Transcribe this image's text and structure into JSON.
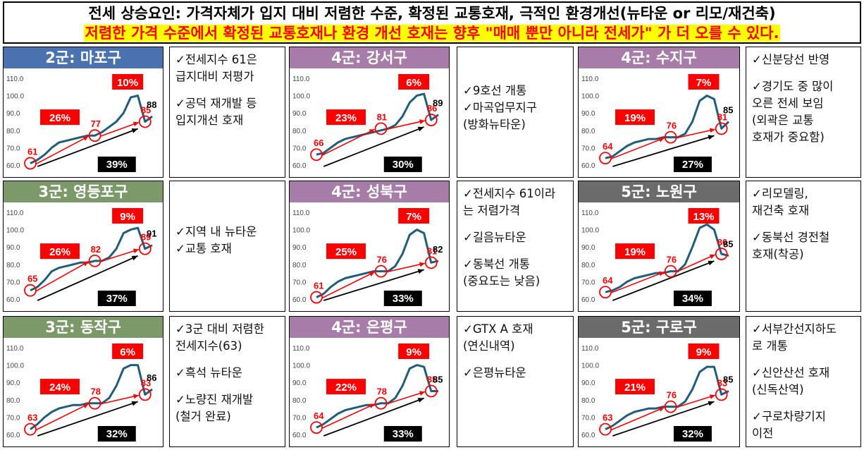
{
  "header": {
    "title": "전세 상승요인: 가격자체가 입지 대비 저렴한 수준, 확정된 교통호재, 극적인 환경개선(뉴타운 or 리모/재건축)",
    "subtitle": "저렴한 가격 수준에서 확정된 교통호재나 환경 개선 호재는 향후 \"매매 뿐만 아니라 전세가\" 가 더 오를 수 있다."
  },
  "colors": {
    "group2": "#4a72b0",
    "group3": "#7c9a69",
    "group4": "#a77ca8",
    "group5": "#6b6b6b",
    "line": "#1f5d7e",
    "red": "#ff0000"
  },
  "chart_data": [
    {
      "type": "line",
      "title": "2군: 마포구",
      "group": "group2",
      "yticks": [
        "110.0",
        "100.0",
        "90.0",
        "80.0",
        "70.0",
        "60.0"
      ],
      "ylim": [
        60,
        110
      ],
      "values": [
        61,
        63,
        66,
        70,
        73,
        74,
        75,
        76,
        77,
        77,
        79,
        82,
        85,
        90,
        99,
        100,
        85,
        88
      ],
      "markers": [
        {
          "label": "61",
          "value": 61
        },
        {
          "label": "77",
          "value": 77
        },
        {
          "label": "85",
          "value": 85
        }
      ],
      "end_label": "88",
      "pct1": "26%",
      "pct2": "10%",
      "total": "39%"
    },
    {
      "type": "line",
      "title": "4군: 강서구",
      "group": "group4",
      "yticks": [
        "110.0",
        "100.0",
        "90.0",
        "80.0",
        "70.0",
        "60.0"
      ],
      "ylim": [
        60,
        110
      ],
      "values": [
        66,
        67,
        70,
        73,
        75,
        76,
        77,
        78,
        79,
        80,
        81,
        83,
        88,
        96,
        100,
        101,
        86,
        89
      ],
      "markers": [
        {
          "label": "66",
          "value": 66
        },
        {
          "label": "81",
          "value": 81
        },
        {
          "label": "86",
          "value": 86
        }
      ],
      "end_label": "89",
      "pct1": "23%",
      "pct2": "6%",
      "total": "30%"
    },
    {
      "type": "line",
      "title": "4군: 수지구",
      "group": "group4",
      "yticks": [
        "110.0",
        "100.0",
        "90.0",
        "80.0",
        "70.0",
        "60.0"
      ],
      "ylim": [
        60,
        110
      ],
      "values": [
        64,
        65,
        68,
        71,
        73,
        74,
        75,
        75,
        76,
        76,
        76,
        78,
        85,
        97,
        100,
        98,
        81,
        85
      ],
      "markers": [
        {
          "label": "64",
          "value": 64
        },
        {
          "label": "76",
          "value": 76
        },
        {
          "label": "81",
          "value": 81
        }
      ],
      "end_label": "85",
      "pct1": "19%",
      "pct2": "7%",
      "total": "27%"
    },
    {
      "type": "line",
      "title": "3군: 영등포구",
      "group": "group3",
      "yticks": [
        "110.0",
        "100.0",
        "90.0",
        "80.0",
        "70.0",
        "60.0"
      ],
      "ylim": [
        60,
        110
      ],
      "values": [
        65,
        67,
        71,
        76,
        78,
        79,
        80,
        81,
        81,
        82,
        82,
        84,
        89,
        98,
        100,
        101,
        89,
        91
      ],
      "markers": [
        {
          "label": "65",
          "value": 65
        },
        {
          "label": "82",
          "value": 82
        },
        {
          "label": "89",
          "value": 89
        }
      ],
      "end_label": "91",
      "pct1": "26%",
      "pct2": "9%",
      "total": "37%"
    },
    {
      "type": "line",
      "title": "4군: 성북구",
      "group": "group4",
      "yticks": [
        "110.0",
        "100.0",
        "90.0",
        "80.0",
        "70.0",
        "60.0"
      ],
      "ylim": [
        60,
        110
      ],
      "values": [
        61,
        63,
        67,
        70,
        72,
        73,
        74,
        75,
        76,
        76,
        76,
        79,
        86,
        97,
        100,
        98,
        81,
        82
      ],
      "markers": [
        {
          "label": "61",
          "value": 61
        },
        {
          "label": "76",
          "value": 76
        },
        {
          "label": "81",
          "value": 81
        }
      ],
      "end_label": "82",
      "pct1": "25%",
      "pct2": "7%",
      "total": "33%"
    },
    {
      "type": "line",
      "title": "5군: 노원구",
      "group": "group5",
      "yticks": [
        "110.0",
        "100.0",
        "90.0",
        "80.0",
        "70.0",
        "60.0"
      ],
      "ylim": [
        60,
        110
      ],
      "values": [
        64,
        65,
        67,
        70,
        72,
        73,
        74,
        75,
        75,
        76,
        76,
        80,
        90,
        101,
        103,
        100,
        86,
        85
      ],
      "markers": [
        {
          "label": "64",
          "value": 64
        },
        {
          "label": "76",
          "value": 76
        },
        {
          "label": "86",
          "value": 86
        }
      ],
      "end_label": "85",
      "pct1": "19%",
      "pct2": "13%",
      "total": "34%"
    },
    {
      "type": "line",
      "title": "3군: 동작구",
      "group": "group3",
      "yticks": [
        "110.0",
        "100.0",
        "90.0",
        "80.0",
        "70.0",
        "60.0"
      ],
      "ylim": [
        60,
        110
      ],
      "values": [
        63,
        66,
        70,
        73,
        75,
        76,
        77,
        77,
        78,
        78,
        78,
        81,
        88,
        98,
        100,
        100,
        83,
        86
      ],
      "markers": [
        {
          "label": "63",
          "value": 63
        },
        {
          "label": "78",
          "value": 78
        },
        {
          "label": "83",
          "value": 83
        }
      ],
      "end_label": "86",
      "pct1": "24%",
      "pct2": "6%",
      "total": "32%"
    },
    {
      "type": "line",
      "title": "4군: 은평구",
      "group": "group4",
      "yticks": [
        "110.0",
        "100.0",
        "90.0",
        "80.0",
        "70.0",
        "60.0"
      ],
      "ylim": [
        60,
        110
      ],
      "values": [
        64,
        66,
        69,
        72,
        74,
        75,
        76,
        77,
        77,
        78,
        78,
        81,
        88,
        98,
        100,
        99,
        85,
        85
      ],
      "markers": [
        {
          "label": "64",
          "value": 64
        },
        {
          "label": "78",
          "value": 78
        },
        {
          "label": "85",
          "value": 85
        }
      ],
      "end_label": "85",
      "pct1": "22%",
      "pct2": "9%",
      "total": "33%"
    },
    {
      "type": "line",
      "title": "5군: 구로구",
      "group": "group5",
      "yticks": [
        "110.0",
        "100.0",
        "90.0",
        "80.0",
        "70.0",
        "60.0"
      ],
      "ylim": [
        60,
        110
      ],
      "values": [
        63,
        65,
        68,
        71,
        73,
        74,
        75,
        75,
        76,
        76,
        76,
        79,
        86,
        96,
        99,
        99,
        83,
        85
      ],
      "markers": [
        {
          "label": "63",
          "value": 63
        },
        {
          "label": "76",
          "value": 76
        },
        {
          "label": "83",
          "value": 83
        }
      ],
      "end_label": "85",
      "pct1": "21%",
      "pct2": "9%",
      "total": "32%"
    }
  ],
  "notes": [
    [
      "✓전세지수 61은\n급지대비 저평가",
      "✓공덕 재개발 등\n입지개선 호재"
    ],
    [
      "✓9호선 개통\n✓마곡업무지구\n(방화뉴타운)"
    ],
    [
      "✓신분당선 반영",
      "✓경기도 중 많이\n오른 전세 보임\n(외곽은 교통\n호재가 중요함)"
    ],
    [
      "✓지역 내 뉴타운\n✓교통 호재"
    ],
    [
      "✓전세지수 61이라\n는 저렴가격",
      "✓길음뉴타운",
      "✓동북선 개통\n(중요도는 낮음)"
    ],
    [
      "✓리모델링,\n재건축 호재",
      "✓동북선 경전철\n호재(착공)"
    ],
    [
      "✓3군 대비 저렴한\n전세지수(63)",
      "✓흑석 뉴타운",
      "✓노량진 재개발\n(철거 완료)"
    ],
    [
      "✓GTX A 호재\n(연신내역)",
      "✓은평뉴타운"
    ],
    [
      "✓서부간선지하도\n로 개통",
      "✓신안산선 호재\n(신독산역)",
      "✓구로차량기지\n이전"
    ]
  ]
}
